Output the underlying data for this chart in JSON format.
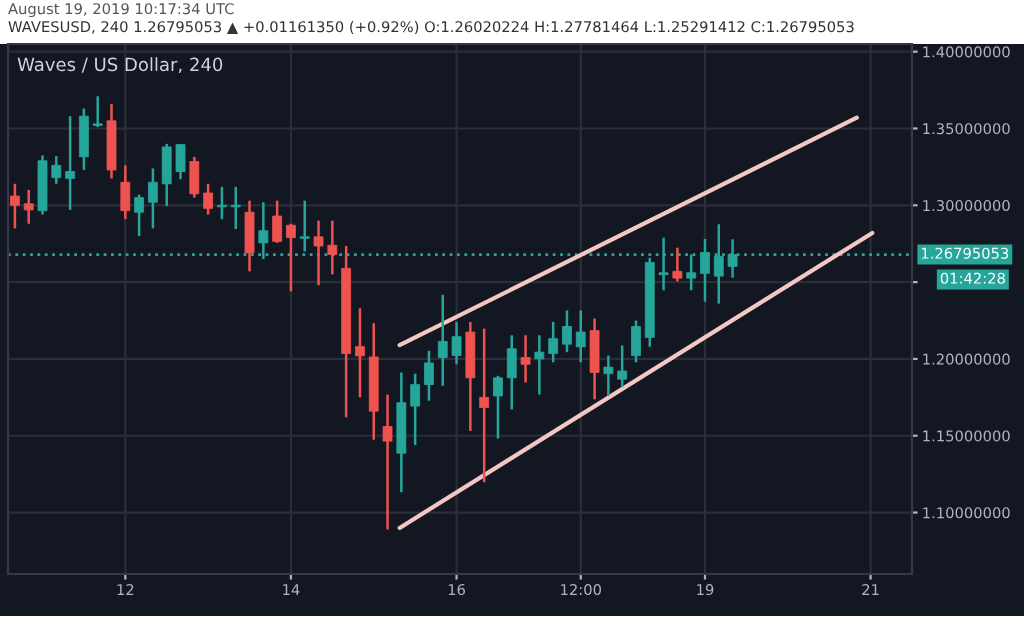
{
  "chart_data": {
    "type": "candlestick",
    "title": "Waves / US Dollar, 240",
    "subtitle": "WAVESUSD, 240 1.26795053 ▲ +0.01161350 (+0.92%) O:1.26020224 H:1.27781464 L:1.25291412 C:1.26795053",
    "annotations": [
      "August 19, 2019 10:17:34 UTC",
      "01:42:28"
    ],
    "x": [
      "2019-08-10T16:00",
      "2019-08-10T20:00",
      "2019-08-11T00:00",
      "2019-08-11T04:00",
      "2019-08-11T08:00",
      "2019-08-11T12:00",
      "2019-08-11T16:00",
      "2019-08-11T20:00",
      "2019-08-12T00:00",
      "2019-08-12T04:00",
      "2019-08-12T08:00",
      "2019-08-12T12:00",
      "2019-08-12T16:00",
      "2019-08-12T20:00",
      "2019-08-13T00:00",
      "2019-08-13T04:00",
      "2019-08-13T08:00",
      "2019-08-13T12:00",
      "2019-08-13T16:00",
      "2019-08-13T20:00",
      "2019-08-14T00:00",
      "2019-08-14T04:00",
      "2019-08-14T08:00",
      "2019-08-14T12:00",
      "2019-08-14T16:00",
      "2019-08-14T20:00",
      "2019-08-15T00:00",
      "2019-08-15T04:00",
      "2019-08-15T08:00",
      "2019-08-15T12:00",
      "2019-08-15T16:00",
      "2019-08-15T20:00",
      "2019-08-16T00:00",
      "2019-08-16T04:00",
      "2019-08-16T08:00",
      "2019-08-16T12:00",
      "2019-08-16T16:00",
      "2019-08-16T20:00",
      "2019-08-17T00:00",
      "2019-08-17T04:00",
      "2019-08-17T08:00",
      "2019-08-17T12:00",
      "2019-08-17T16:00",
      "2019-08-17T20:00",
      "2019-08-18T00:00",
      "2019-08-18T04:00",
      "2019-08-18T08:00",
      "2019-08-18T12:00",
      "2019-08-18T16:00",
      "2019-08-18T20:00",
      "2019-08-19T00:00",
      "2019-08-19T04:00",
      "2019-08-19T08:00"
    ],
    "ohlc": [
      [
        1.306,
        1.314,
        1.285,
        1.3
      ],
      [
        1.301,
        1.31,
        1.288,
        1.297
      ],
      [
        1.2965,
        1.3325,
        1.294,
        1.329
      ],
      [
        1.318,
        1.332,
        1.314,
        1.326
      ],
      [
        1.3175,
        1.358,
        1.297,
        1.322
      ],
      [
        1.3316,
        1.363,
        1.323,
        1.358
      ],
      [
        1.352,
        1.371,
        1.351,
        1.353
      ],
      [
        1.355,
        1.366,
        1.3175,
        1.323
      ],
      [
        1.315,
        1.326,
        1.291,
        1.2965
      ],
      [
        1.2955,
        1.307,
        1.28,
        1.305
      ],
      [
        1.302,
        1.324,
        1.285,
        1.315
      ],
      [
        1.314,
        1.34,
        1.2995,
        1.338
      ],
      [
        1.322,
        1.34,
        1.317,
        1.3395
      ],
      [
        1.3285,
        1.3315,
        1.305,
        1.3075
      ],
      [
        1.308,
        1.314,
        1.294,
        1.298
      ],
      [
        1.299,
        1.312,
        1.291,
        1.3
      ],
      [
        1.299,
        1.312,
        1.2845,
        1.3
      ],
      [
        1.2955,
        1.303,
        1.257,
        1.269
      ],
      [
        1.2755,
        1.302,
        1.265,
        1.2835
      ],
      [
        1.293,
        1.303,
        1.2755,
        1.2765
      ],
      [
        1.287,
        1.288,
        1.244,
        1.279
      ],
      [
        1.2785,
        1.303,
        1.27,
        1.2795
      ],
      [
        1.2795,
        1.29,
        1.248,
        1.2735
      ],
      [
        1.274,
        1.29,
        1.255,
        1.268
      ],
      [
        1.259,
        1.2735,
        1.162,
        1.2035
      ],
      [
        1.208,
        1.233,
        1.175,
        1.202
      ],
      [
        1.2013,
        1.2233,
        1.1474,
        1.166
      ],
      [
        1.156,
        1.1768,
        1.089,
        1.1465
      ],
      [
        1.1386,
        1.1912,
        1.1132,
        1.1715
      ],
      [
        1.1693,
        1.1904,
        1.1439,
        1.1833
      ],
      [
        1.1833,
        1.2053,
        1.1728,
        1.1974
      ],
      [
        1.2009,
        1.2417,
        1.1825,
        1.2114
      ],
      [
        1.2022,
        1.2241,
        1.1965,
        1.2145
      ],
      [
        1.2175,
        1.2241,
        1.1531,
        1.1877
      ],
      [
        1.175,
        1.2197,
        1.1197,
        1.1684
      ],
      [
        1.1759,
        1.189,
        1.1482,
        1.1877
      ],
      [
        1.1877,
        1.2154,
        1.1671,
        1.2066
      ],
      [
        1.2009,
        1.2154,
        1.1846,
        1.1965
      ],
      [
        1.2,
        1.2154,
        1.1768,
        1.2044
      ],
      [
        1.2035,
        1.2241,
        1.1978,
        1.2132
      ],
      [
        1.2096,
        1.2316,
        1.2044,
        1.2211
      ],
      [
        1.2079,
        1.2316,
        1.1978,
        1.2175
      ],
      [
        1.2184,
        1.2263,
        1.1737,
        1.1912
      ],
      [
        1.1904,
        1.2022,
        1.1759,
        1.1947
      ],
      [
        1.1868,
        1.2088,
        1.1816,
        1.1921
      ],
      [
        1.2022,
        1.225,
        1.1978,
        1.2211
      ],
      [
        1.214,
        1.2658,
        1.2079,
        1.2627
      ],
      [
        1.2548,
        1.2789,
        1.2447,
        1.2561
      ],
      [
        1.257,
        1.2724,
        1.2504,
        1.2526
      ],
      [
        1.2526,
        1.268,
        1.2447,
        1.2561
      ],
      [
        1.2557,
        1.2781,
        1.2373,
        1.2693
      ],
      [
        1.2539,
        1.2877,
        1.236,
        1.2667
      ],
      [
        1.26020224,
        1.27781464,
        1.25291412,
        1.26795053
      ]
    ],
    "colors": [
      "#ef5350",
      "#ef5350",
      "#26a69a",
      "#26a69a",
      "#26a69a",
      "#26a69a",
      "#26a69a",
      "#ef5350",
      "#ef5350",
      "#26a69a",
      "#26a69a",
      "#26a69a",
      "#26a69a",
      "#ef5350",
      "#ef5350",
      "#26a69a",
      "#26a69a",
      "#ef5350",
      "#26a69a",
      "#ef5350",
      "#ef5350",
      "#26a69a",
      "#ef5350",
      "#ef5350",
      "#ef5350",
      "#ef5350",
      "#ef5350",
      "#ef5350",
      "#26a69a",
      "#26a69a",
      "#26a69a",
      "#26a69a",
      "#26a69a",
      "#ef5350",
      "#ef5350",
      "#26a69a",
      "#26a69a",
      "#ef5350",
      "#26a69a",
      "#26a69a",
      "#26a69a",
      "#26a69a",
      "#ef5350",
      "#26a69a",
      "#26a69a",
      "#26a69a",
      "#26a69a",
      "#26a69a",
      "#ef5350",
      "#26a69a",
      "#26a69a",
      "#26a69a",
      "#26a69a"
    ],
    "series": [
      {
        "type": "line",
        "color": "#f4c7c3",
        "x": [
          "2019-08-15T07:30",
          "2019-08-20T20:00"
        ],
        "values": [
          1.209,
          1.357
        ]
      },
      {
        "type": "line",
        "color": "#f4c7c3",
        "x": [
          "2019-08-15T07:30",
          "2019-08-21T00:30"
        ],
        "values": [
          1.09,
          1.282
        ]
      }
    ],
    "ref_lines": [
      {
        "axis": "y",
        "value": 1.26795053,
        "label": "1.26795053",
        "color": "#26a69a",
        "line_style": "dotted"
      }
    ],
    "xlim": [
      "2019-08-10T14:00",
      "2019-08-21T12:00"
    ],
    "xticks": [
      {
        "value": "2019-08-12",
        "label": "12"
      },
      {
        "value": "2019-08-14",
        "label": "14"
      },
      {
        "value": "2019-08-16",
        "label": "16"
      },
      {
        "value": "2019-08-17T12:00",
        "label": "12:00"
      },
      {
        "value": "2019-08-19",
        "label": "19"
      },
      {
        "value": "2019-08-21",
        "label": "21"
      }
    ],
    "ylim": [
      1.06,
      1.405
    ],
    "yticks": [
      {
        "value": 1.1,
        "label": "1.10000000"
      },
      {
        "value": 1.15,
        "label": "1.15000000"
      },
      {
        "value": 1.2,
        "label": "1.20000000"
      },
      {
        "value": 1.25,
        "label": null
      },
      {
        "value": 1.3,
        "label": "1.30000000"
      },
      {
        "value": 1.35,
        "label": "1.35000000"
      },
      {
        "value": 1.4,
        "label": "1.40000000"
      }
    ],
    "grid": true,
    "legend": false
  }
}
